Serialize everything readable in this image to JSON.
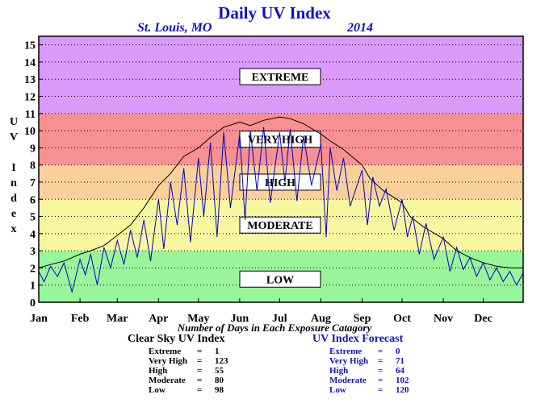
{
  "title": "Daily UV Index",
  "location": "St. Louis, MO",
  "year": "2014",
  "ylabel_letters": [
    "U",
    "V",
    "",
    "I",
    "n",
    "d",
    "e",
    "x"
  ],
  "x_caption": "Number of Days in Each Exposure Catagory",
  "bands": [
    {
      "label": "LOW",
      "from": 0,
      "to": 3,
      "color": "#99f599"
    },
    {
      "label": "MODERATE",
      "from": 3,
      "to": 6,
      "color": "#f7f7a0"
    },
    {
      "label": "HIGH",
      "from": 6,
      "to": 8,
      "color": "#f9d09a"
    },
    {
      "label": "VERY HIGH",
      "from": 8,
      "to": 11,
      "color": "#f79090"
    },
    {
      "label": "EXTREME",
      "from": 11,
      "to": 15.5,
      "color": "#d99af8"
    }
  ],
  "clear_sky": {
    "heading": "Clear Sky UV Index",
    "rows": [
      {
        "label": "Extreme",
        "eq": "=",
        "value": "1"
      },
      {
        "label": "Very High",
        "eq": "=",
        "value": "123"
      },
      {
        "label": "High",
        "eq": "=",
        "value": "55"
      },
      {
        "label": "Moderate",
        "eq": "=",
        "value": "80"
      },
      {
        "label": "Low",
        "eq": "=",
        "value": "98"
      }
    ]
  },
  "forecast": {
    "heading": "UV Index Forecast",
    "rows": [
      {
        "label": "Extreme",
        "eq": "=",
        "value": "0"
      },
      {
        "label": "Very High",
        "eq": "=",
        "value": "71"
      },
      {
        "label": "High",
        "eq": "=",
        "value": "64"
      },
      {
        "label": "Moderate",
        "eq": "=",
        "value": "102"
      },
      {
        "label": "Low",
        "eq": "=",
        "value": "120"
      }
    ]
  },
  "chart_data": {
    "type": "line",
    "title": "Daily UV Index",
    "ylabel": "UV Index",
    "ylim": [
      0,
      15.5
    ],
    "yticks": [
      0,
      1,
      2,
      3,
      4,
      5,
      6,
      7,
      8,
      9,
      10,
      11,
      12,
      13,
      14,
      15
    ],
    "xlim": [
      1,
      365
    ],
    "x_ticks": [
      {
        "label": "Jan",
        "day": 1
      },
      {
        "label": "Feb",
        "day": 32
      },
      {
        "label": "Mar",
        "day": 60
      },
      {
        "label": "Apr",
        "day": 91
      },
      {
        "label": "May",
        "day": 121
      },
      {
        "label": "Jun",
        "day": 152
      },
      {
        "label": "Jul",
        "day": 182
      },
      {
        "label": "Aug",
        "day": 213
      },
      {
        "label": "Sep",
        "day": 244
      },
      {
        "label": "Oct",
        "day": 274
      },
      {
        "label": "Nov",
        "day": 305
      },
      {
        "label": "Dec",
        "day": 335
      }
    ],
    "grid": "horizontal dotted",
    "series": [
      {
        "color": "#000000",
        "x": [
          1,
          10,
          20,
          32,
          40,
          50,
          60,
          70,
          80,
          91,
          100,
          110,
          121,
          130,
          140,
          152,
          160,
          170,
          182,
          190,
          200,
          213,
          220,
          230,
          244,
          250,
          260,
          274,
          280,
          290,
          305,
          315,
          325,
          335,
          345,
          355,
          365
        ],
        "y": [
          2.0,
          2.2,
          2.4,
          2.8,
          3.0,
          3.3,
          3.9,
          4.5,
          5.5,
          6.8,
          7.5,
          8.5,
          9.0,
          9.6,
          10.2,
          10.5,
          10.3,
          10.6,
          10.8,
          10.7,
          10.4,
          9.8,
          9.4,
          8.9,
          8.0,
          7.2,
          6.5,
          5.8,
          5.0,
          4.4,
          3.7,
          3.0,
          2.6,
          2.3,
          2.1,
          2.0,
          2.0
        ]
      },
      {
        "color": "#0000cc",
        "x": [
          1,
          5,
          10,
          15,
          20,
          26,
          32,
          36,
          40,
          45,
          50,
          55,
          60,
          65,
          70,
          75,
          80,
          85,
          91,
          95,
          100,
          105,
          110,
          115,
          121,
          125,
          130,
          135,
          140,
          145,
          152,
          156,
          160,
          165,
          170,
          175,
          182,
          186,
          190,
          195,
          200,
          206,
          213,
          217,
          220,
          225,
          230,
          235,
          244,
          248,
          252,
          257,
          262,
          268,
          274,
          278,
          282,
          287,
          292,
          298,
          305,
          310,
          315,
          320,
          325,
          330,
          335,
          340,
          345,
          350,
          355,
          360,
          365
        ],
        "y": [
          1.8,
          1.2,
          2.1,
          1.5,
          2.3,
          0.6,
          2.5,
          1.6,
          2.8,
          1.0,
          3.2,
          2.0,
          3.6,
          2.2,
          4.2,
          2.6,
          4.8,
          2.4,
          6.0,
          3.1,
          7.0,
          4.5,
          7.8,
          3.5,
          8.4,
          5.0,
          9.3,
          3.8,
          9.9,
          5.5,
          9.8,
          4.8,
          10.0,
          6.5,
          10.2,
          5.8,
          9.9,
          7.0,
          10.1,
          5.9,
          9.7,
          6.8,
          9.2,
          3.8,
          9.0,
          6.5,
          8.4,
          5.6,
          7.7,
          4.5,
          7.3,
          5.6,
          6.6,
          4.2,
          6.0,
          3.8,
          5.0,
          2.8,
          4.6,
          2.5,
          3.8,
          1.8,
          3.2,
          1.9,
          2.6,
          1.5,
          2.3,
          1.3,
          2.0,
          1.2,
          1.8,
          1.0,
          1.7
        ]
      }
    ],
    "annotations": [
      "EXTREME",
      "VERY HIGH",
      "HIGH",
      "MODERATE",
      "LOW"
    ]
  }
}
